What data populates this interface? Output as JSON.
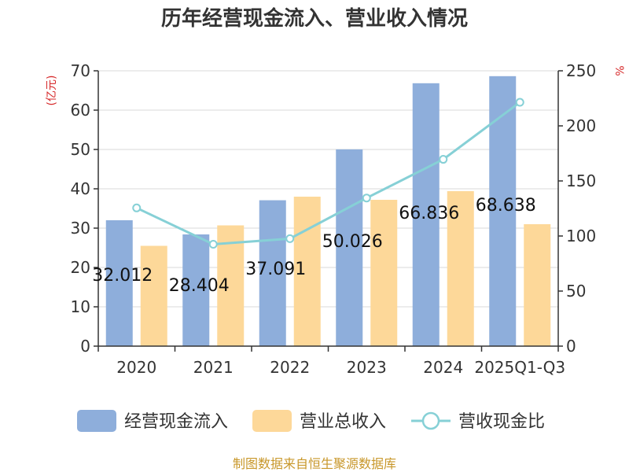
{
  "title": "历年经营现金流入、营业收入情况",
  "source": "制图数据来自恒生聚源数据库",
  "chart_data": {
    "type": "bar",
    "categories": [
      "2020",
      "2021",
      "2022",
      "2023",
      "2024",
      "2025Q1-Q3"
    ],
    "series": [
      {
        "name": "经营现金流入",
        "kind": "bar",
        "axis": "left",
        "color": "#8eaedb",
        "values": [
          32.012,
          28.404,
          37.091,
          50.026,
          66.836,
          68.638
        ],
        "labels": [
          "32.012",
          "28.404",
          "37.091",
          "50.026",
          "66.836",
          "68.638"
        ]
      },
      {
        "name": "营业总收入",
        "kind": "bar",
        "axis": "left",
        "color": "#fdd899",
        "values": [
          25.5,
          30.7,
          38.0,
          37.2,
          39.4,
          31.0
        ]
      },
      {
        "name": "营收现金比",
        "kind": "line",
        "axis": "right",
        "color": "#86d0d6",
        "values": [
          125.5,
          92.5,
          97.6,
          134.5,
          169.6,
          221.4
        ]
      }
    ],
    "y_left": {
      "unit": "(亿元)",
      "min": 0,
      "max": 70,
      "ticks": [
        0,
        10,
        20,
        30,
        40,
        50,
        60,
        70
      ]
    },
    "y_right": {
      "unit": "%",
      "min": 0,
      "max": 250,
      "ticks": [
        0,
        50,
        100,
        150,
        200,
        250
      ]
    },
    "legend": {
      "position": "bottom"
    }
  }
}
